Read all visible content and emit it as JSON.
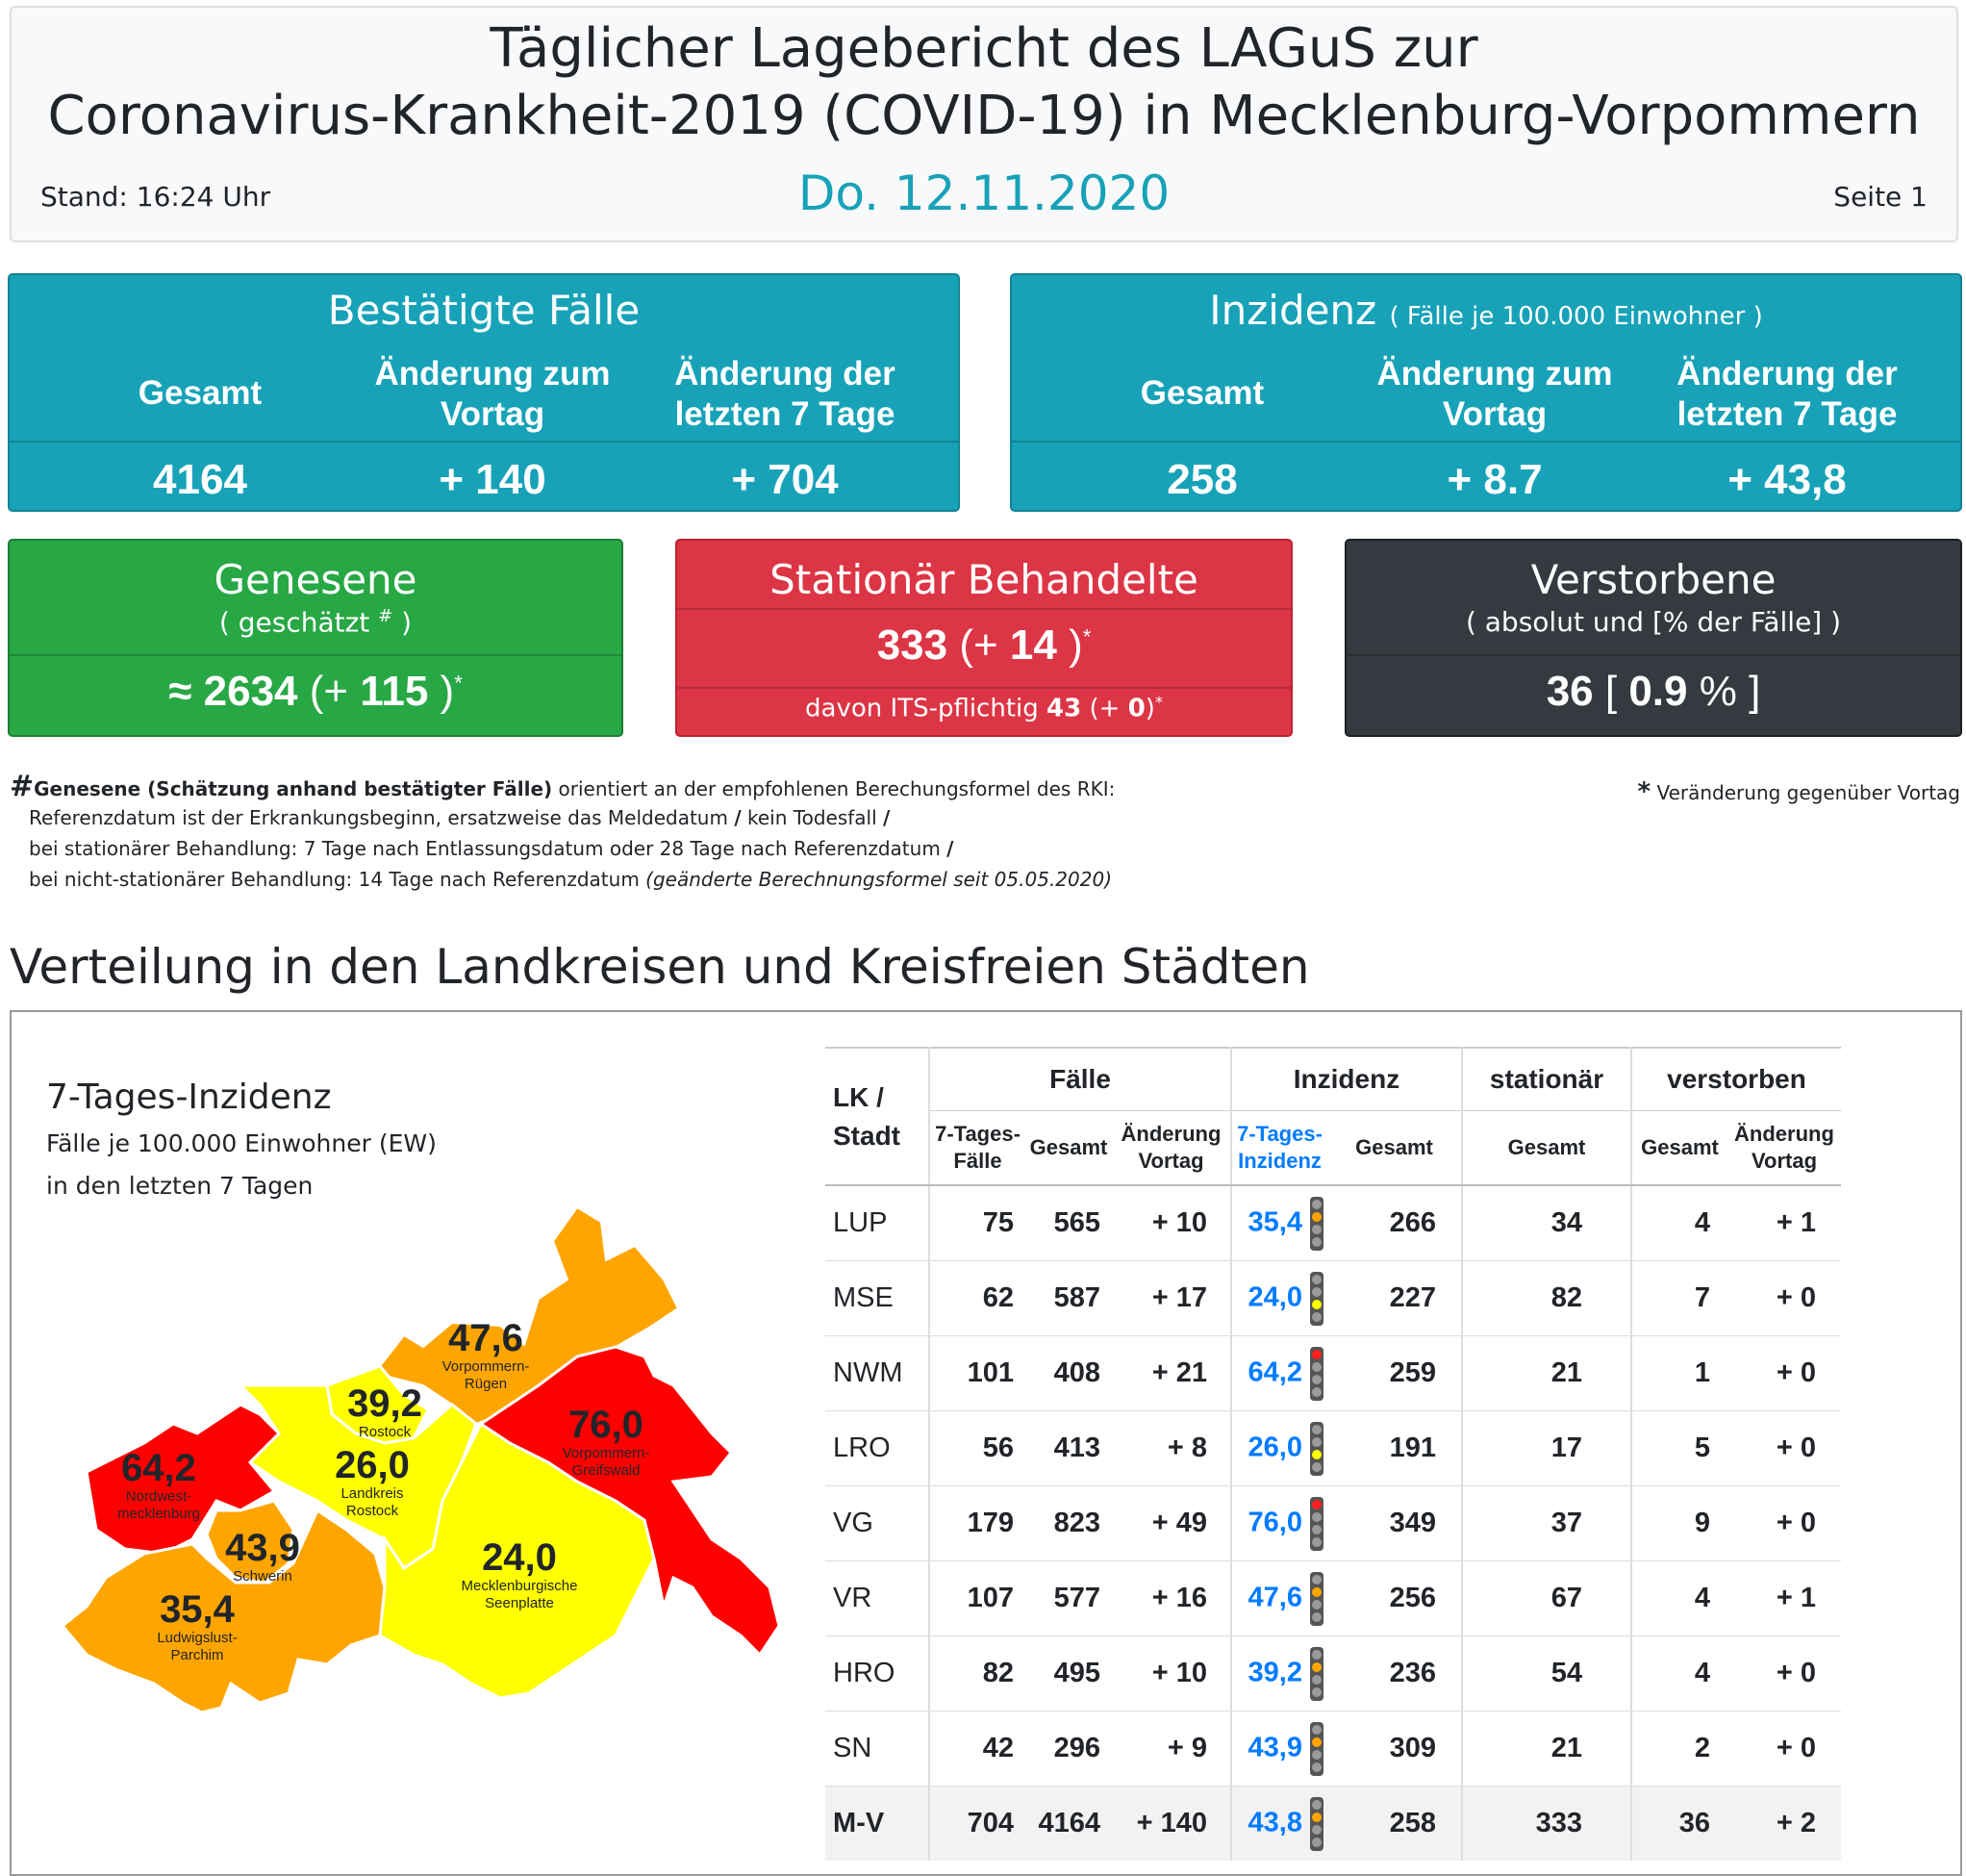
{
  "header": {
    "title_line1": "Täglicher Lagebericht des LAGuS zur",
    "title_line2": "Coronavirus-Krankheit-2019 (COVID-19) in Mecklenburg-Vorpommern",
    "stand": "Stand: 16:24 Uhr",
    "date": "Do. 12.11.2020",
    "page": "Seite 1"
  },
  "confirmed": {
    "title": "Bestätigte Fälle",
    "col1": "Gesamt",
    "col2_l1": "Änderung zum",
    "col2_l2": "Vortag",
    "col3_l1": "Änderung der",
    "col3_l2": "letzten 7 Tage",
    "v1": "4164",
    "v2": "+ 140",
    "v3": "+ 704"
  },
  "incidence": {
    "title": "Inzidenz",
    "title_note": "( Fälle je 100.000 Einwohner )",
    "col1": "Gesamt",
    "col2_l1": "Änderung zum",
    "col2_l2": "Vortag",
    "col3_l1": "Änderung der",
    "col3_l2": "letzten 7 Tage",
    "v1": "258",
    "v2": "+ 8.7",
    "v3": "+ 43,8"
  },
  "recovered": {
    "title": "Genesene",
    "sub_pre": "( geschätzt ",
    "sub_mark": "#",
    "sub_post": " )",
    "value": "≈ 2634",
    "change_open": " (+ ",
    "change": "115",
    "change_close": " )",
    "star": "*"
  },
  "hospital": {
    "title": "Stationär Behandelte",
    "value": "333",
    "change_open": " (+ ",
    "change": "14",
    "change_close": " )",
    "star": "*",
    "its_pre": "davon ITS-pflichtig ",
    "its_value": "43",
    "its_change": " (+ ",
    "its_change_val": "0",
    "its_close": ")",
    "its_star": "*"
  },
  "deaths": {
    "title": "Verstorbene",
    "sub": "( absolut und [% der Fälle] )",
    "value": "36",
    "pct_open": " [ ",
    "pct": "0.9",
    "pct_unit": " % ]"
  },
  "notes": {
    "hash": "#",
    "line1_bold": "Genesene (Schätzung anhand bestätigter Fälle)",
    "line1_rest": " orientiert an der empfohlenen Berechungsformel des RKI:",
    "line2a": "Referenzdatum ist der Erkrankungsbeginn, ersatzweise das Meldedatum ",
    "line2b": " kein Todesfall ",
    "slash": "/",
    "line3": "bei stationärer Behandlung: 7 Tage nach Entlassungsdatum oder 28 Tage nach Referenzdatum ",
    "line4": "bei nicht-stationärer Behandlung: 14 Tage nach Referenzdatum ",
    "line4_italic": "(geänderte Berechnungsformel seit 05.05.2020)",
    "star": "*",
    "star_text": " Veränderung gegenüber Vortag"
  },
  "section_title": "Verteilung in den Landkreisen und Kreisfreien Städten",
  "map": {
    "title": "7-Tages-Inzidenz",
    "sub1": "Fälle je 100.000 Einwohner (EW)",
    "sub2": "in den letzten 7 Tagen",
    "colors": {
      "red": "#ff0000",
      "orange": "#ffa500",
      "yellow": "#ffff00"
    },
    "regions": [
      {
        "value": "47,6",
        "name1": "Vorpommern-",
        "name2": "Rügen"
      },
      {
        "value": "39,2",
        "name1": "Rostock",
        "name2": ""
      },
      {
        "value": "76,0",
        "name1": "Vorpommern-",
        "name2": "Greifswald"
      },
      {
        "value": "64,2",
        "name1": "Nordwest-",
        "name2": "mecklenburg"
      },
      {
        "value": "26,0",
        "name1": "Landkreis",
        "name2": "Rostock"
      },
      {
        "value": "43,9",
        "name1": "Schwerin",
        "name2": ""
      },
      {
        "value": "24,0",
        "name1": "Mecklenburgische",
        "name2": "Seenplatte"
      },
      {
        "value": "35,4",
        "name1": "Ludwigslust-",
        "name2": "Parchim"
      }
    ]
  },
  "table": {
    "h_lk1": "LK /",
    "h_lk2": "Stadt",
    "h_faelle": "Fälle",
    "h_inzidenz": "Inzidenz",
    "h_stationaer": "stationär",
    "h_verstorben": "verstorben",
    "h_7tf1": "7-Tages-",
    "h_7tf2": "Fälle",
    "h_gesamt": "Gesamt",
    "h_aend1": "Änderung",
    "h_aend2": "Vortag",
    "h_7ti1": "7-Tages-",
    "h_7ti2": "Inzidenz",
    "rows": [
      {
        "lk": "LUP",
        "f7": "75",
        "fg": "565",
        "fa": "+ 10",
        "i7": "35,4",
        "light": "orange",
        "ig": "266",
        "st": "34",
        "vg": "4",
        "va": "+ 1"
      },
      {
        "lk": "MSE",
        "f7": "62",
        "fg": "587",
        "fa": "+ 17",
        "i7": "24,0",
        "light": "yellow",
        "ig": "227",
        "st": "82",
        "vg": "7",
        "va": "+ 0"
      },
      {
        "lk": "NWM",
        "f7": "101",
        "fg": "408",
        "fa": "+ 21",
        "i7": "64,2",
        "light": "red",
        "ig": "259",
        "st": "21",
        "vg": "1",
        "va": "+ 0"
      },
      {
        "lk": "LRO",
        "f7": "56",
        "fg": "413",
        "fa": "+ 8",
        "i7": "26,0",
        "light": "yellow",
        "ig": "191",
        "st": "17",
        "vg": "5",
        "va": "+ 0"
      },
      {
        "lk": "VG",
        "f7": "179",
        "fg": "823",
        "fa": "+ 49",
        "i7": "76,0",
        "light": "red",
        "ig": "349",
        "st": "37",
        "vg": "9",
        "va": "+ 0"
      },
      {
        "lk": "VR",
        "f7": "107",
        "fg": "577",
        "fa": "+ 16",
        "i7": "47,6",
        "light": "orange",
        "ig": "256",
        "st": "67",
        "vg": "4",
        "va": "+ 1"
      },
      {
        "lk": "HRO",
        "f7": "82",
        "fg": "495",
        "fa": "+ 10",
        "i7": "39,2",
        "light": "orange",
        "ig": "236",
        "st": "54",
        "vg": "4",
        "va": "+ 0"
      },
      {
        "lk": "SN",
        "f7": "42",
        "fg": "296",
        "fa": "+ 9",
        "i7": "43,9",
        "light": "orange",
        "ig": "309",
        "st": "21",
        "vg": "2",
        "va": "+ 0"
      },
      {
        "lk": "M-V",
        "f7": "704",
        "fg": "4164",
        "fa": "+ 140",
        "i7": "43,8",
        "light": "orange",
        "ig": "258",
        "st": "333",
        "vg": "36",
        "va": "+ 2"
      }
    ]
  }
}
